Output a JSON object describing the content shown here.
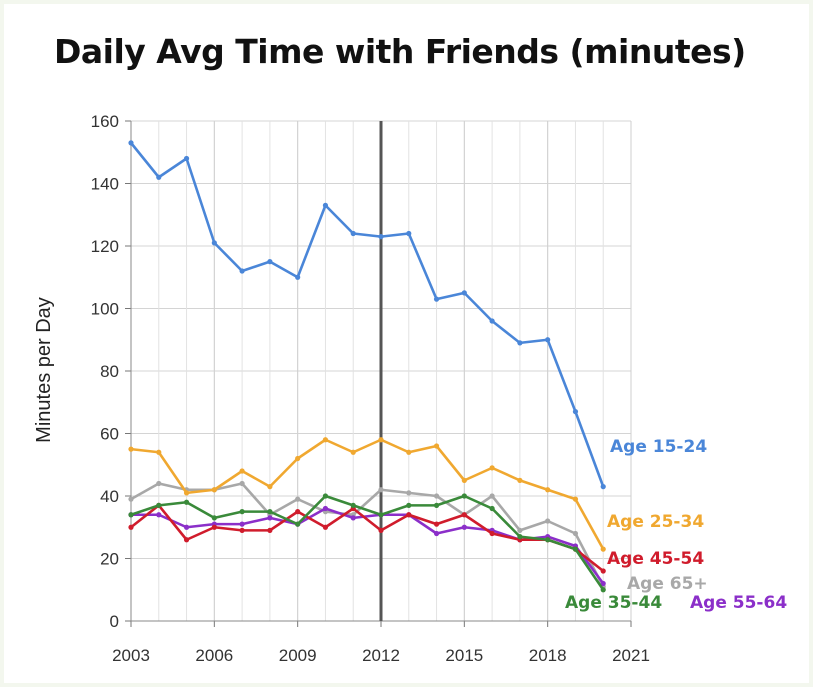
{
  "chart_data": {
    "type": "line",
    "title": "Daily Avg Time with Friends (minutes)",
    "xlabel": "",
    "ylabel": "Minutes per Day",
    "x": [
      2003,
      2004,
      2005,
      2006,
      2007,
      2008,
      2009,
      2010,
      2011,
      2012,
      2013,
      2014,
      2015,
      2016,
      2017,
      2018,
      2019,
      2020
    ],
    "xlim": [
      2003,
      2021
    ],
    "ylim": [
      0,
      160
    ],
    "xticks": [
      "2003",
      "2006",
      "2009",
      "2012",
      "2015",
      "2018",
      "2021"
    ],
    "yticks": [
      "0",
      "20",
      "40",
      "60",
      "80",
      "100",
      "120",
      "140",
      "160"
    ],
    "grid": true,
    "vertical_marker_x": 2012,
    "series": [
      {
        "name": "Age 15-24",
        "color": "#4a86d8",
        "values": [
          153,
          142,
          148,
          121,
          112,
          115,
          110,
          133,
          124,
          123,
          124,
          103,
          105,
          96,
          89,
          90,
          67,
          43
        ]
      },
      {
        "name": "Age 25-34",
        "color": "#f0a830",
        "values": [
          55,
          54,
          41,
          42,
          48,
          43,
          52,
          58,
          54,
          58,
          54,
          56,
          45,
          49,
          45,
          42,
          39,
          23
        ]
      },
      {
        "name": "Age 35-44",
        "color": "#3a8a3a",
        "values": [
          34,
          37,
          38,
          33,
          35,
          35,
          31,
          40,
          37,
          34,
          37,
          37,
          40,
          36,
          27,
          26,
          23,
          10
        ]
      },
      {
        "name": "Age 45-54",
        "color": "#d01c2c",
        "values": [
          30,
          37,
          26,
          30,
          29,
          29,
          35,
          30,
          36,
          29,
          34,
          31,
          34,
          28,
          26,
          26,
          23,
          16
        ]
      },
      {
        "name": "Age 55-64",
        "color": "#8b2fc9",
        "values": [
          34,
          34,
          30,
          31,
          31,
          33,
          31,
          36,
          33,
          34,
          34,
          28,
          30,
          29,
          26,
          27,
          24,
          12
        ]
      },
      {
        "name": "Age 65+",
        "color": "#a8a8a8",
        "values": [
          39,
          44,
          42,
          42,
          44,
          34,
          39,
          35,
          34,
          42,
          41,
          40,
          34,
          40,
          29,
          32,
          28,
          11
        ]
      }
    ]
  }
}
